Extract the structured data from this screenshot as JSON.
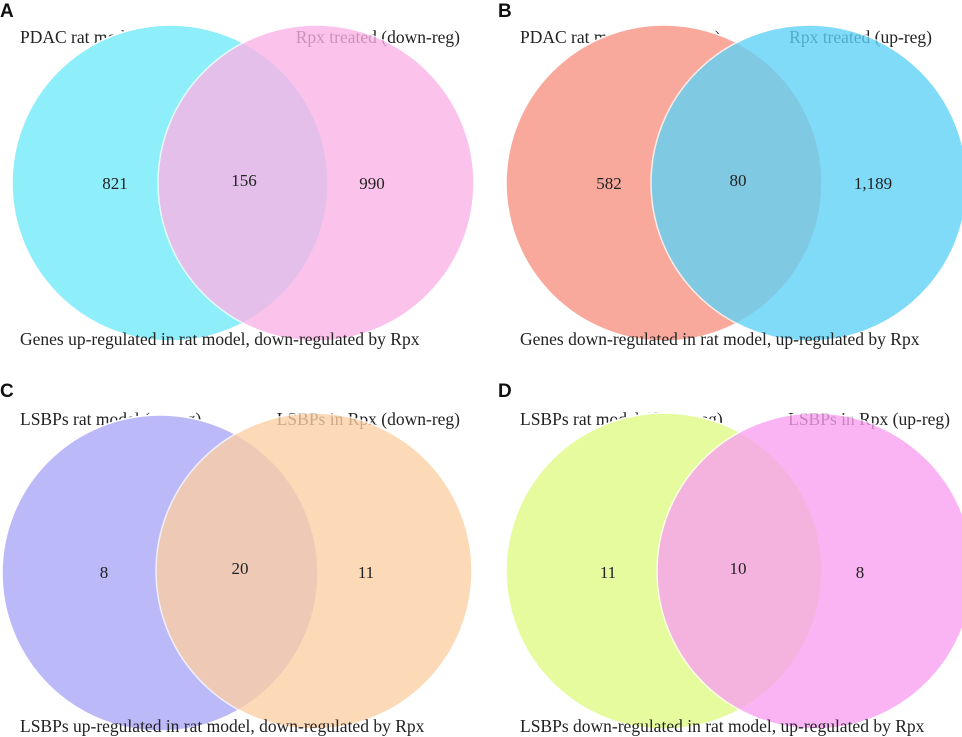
{
  "figure": {
    "panels": [
      {
        "id": "A",
        "letter": "A",
        "left_set": {
          "label": "PDAC rat model (up-reg)",
          "color": "#8eeefa"
        },
        "right_set": {
          "label": "Rpx treated (down-reg)",
          "color": "#fbb3e6"
        },
        "counts": {
          "left_only": "821",
          "overlap": "156",
          "right_only": "990"
        },
        "caption": "Genes up-regulated in rat model, down-regulated by Rpx"
      },
      {
        "id": "B",
        "letter": "B",
        "left_set": {
          "label": "PDAC rat model (down-reg)",
          "color": "#f9a99c"
        },
        "right_set": {
          "label": "Rpx treated (up-reg)",
          "color": "#5dd2f8"
        },
        "counts": {
          "left_only": "582",
          "overlap": "80",
          "right_only": "1,189"
        },
        "caption": "Genes down-regulated in rat model, up-regulated by Rpx"
      },
      {
        "id": "C",
        "letter": "C",
        "left_set": {
          "label": "LSBPs rat model (up-reg)",
          "color": "#bcb9f9"
        },
        "right_set": {
          "label": "LSBPs in Rpx (down-reg)",
          "color": "#fcd0a4"
        },
        "counts": {
          "left_only": "8",
          "overlap": "20",
          "right_only": "11"
        },
        "caption": "LSBPs up-regulated in rat model, down-regulated by Rpx"
      },
      {
        "id": "D",
        "letter": "D",
        "left_set": {
          "label": "LSBPs rat model (down-reg)",
          "color": "#e5fb9e"
        },
        "right_set": {
          "label": "LSBPs in Rpx (up-reg)",
          "color": "#f9a0f0"
        },
        "counts": {
          "left_only": "11",
          "overlap": "10",
          "right_only": "8"
        },
        "caption": "LSBPs down-regulated in rat model, up-regulated by Rpx"
      }
    ]
  }
}
